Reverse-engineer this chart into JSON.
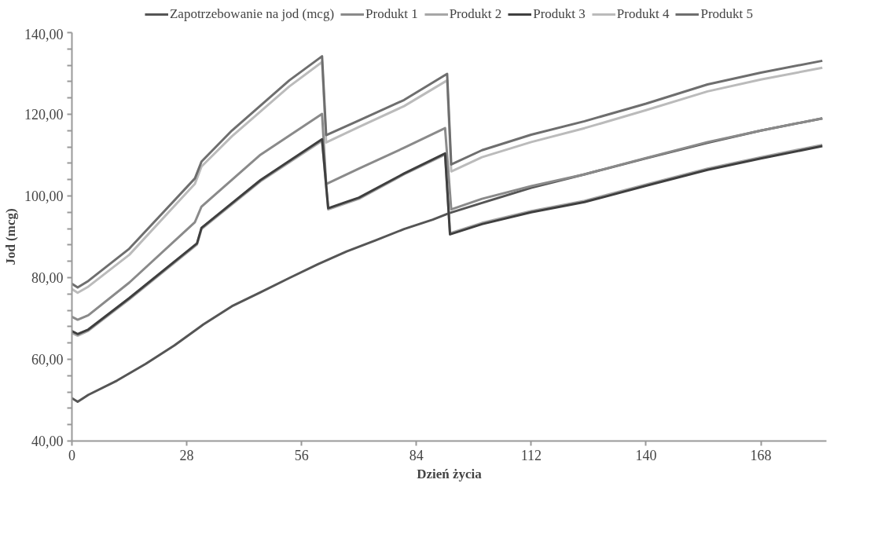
{
  "chart_data": {
    "type": "line",
    "xlabel": "Dzień życia",
    "ylabel": "Jod (mcg)",
    "xlim": [
      0,
      184
    ],
    "xticks": [
      0,
      28,
      56,
      84,
      112,
      140,
      168
    ],
    "ylim": [
      40,
      140
    ],
    "yticks": [
      {
        "value": 40,
        "label": "40,00"
      },
      {
        "value": 44,
        "label": null
      },
      {
        "value": 48,
        "label": null
      },
      {
        "value": 52,
        "label": null
      },
      {
        "value": 56,
        "label": null
      },
      {
        "value": 60,
        "label": "60,00"
      },
      {
        "value": 64,
        "label": null
      },
      {
        "value": 68,
        "label": null
      },
      {
        "value": 72,
        "label": null
      },
      {
        "value": 76,
        "label": null
      },
      {
        "value": 80,
        "label": "80,00"
      },
      {
        "value": 84,
        "label": null
      },
      {
        "value": 88,
        "label": null
      },
      {
        "value": 92,
        "label": null
      },
      {
        "value": 96,
        "label": null
      },
      {
        "value": 100,
        "label": "100,00"
      },
      {
        "value": 104,
        "label": null
      },
      {
        "value": 108,
        "label": null
      },
      {
        "value": 112,
        "label": null
      },
      {
        "value": 116,
        "label": null
      },
      {
        "value": 120,
        "label": "120,00"
      },
      {
        "value": 124,
        "label": null
      },
      {
        "value": 128,
        "label": null
      },
      {
        "value": 132,
        "label": null
      },
      {
        "value": 136,
        "label": null
      },
      {
        "value": 140,
        "label": "140,00"
      }
    ],
    "grid": false,
    "legend": "top",
    "marker": "none",
    "line_style": "solid",
    "series": [
      {
        "name": "Zapotrzebowanie na jod (mcg)",
        "color": "#555555",
        "x": [
          0,
          1.4,
          4,
          11,
          18,
          25,
          32,
          39,
          46,
          53,
          60,
          67,
          74,
          81,
          88,
          92,
          100,
          112,
          125,
          140,
          155,
          168,
          183
        ],
        "values": [
          50.5,
          49.6,
          51.3,
          54.8,
          58.9,
          63.4,
          68.5,
          73.0,
          76.4,
          79.9,
          83.3,
          86.4,
          89.1,
          91.9,
          94.2,
          95.8,
          98.3,
          102.0,
          105.3,
          109.2,
          113.0,
          116.0,
          119.0
        ]
      },
      {
        "name": "Produkt 1",
        "color": "#8a8a8a",
        "x": [
          0,
          1.4,
          4,
          14,
          30,
          31.6,
          46,
          61,
          62,
          70,
          81,
          91,
          92.5,
          100,
          112,
          125,
          140,
          155,
          168,
          183
        ],
        "values": [
          70.4,
          69.7,
          70.8,
          78.8,
          93.6,
          97.4,
          110.1,
          120.1,
          102.9,
          106.7,
          111.8,
          116.6,
          96.7,
          99.3,
          102.4,
          105.3,
          109.3,
          113.2,
          116.0,
          119.0
        ]
      },
      {
        "name": "Produkt 2",
        "color": "#a6a6a6",
        "x": [
          0,
          1.4,
          4,
          14,
          30.5,
          31.6,
          46,
          61,
          62.5,
          70,
          81,
          91,
          92.2,
          100,
          112,
          125,
          140,
          155,
          168,
          183
        ],
        "values": [
          66.5,
          65.8,
          67.0,
          74.7,
          88.1,
          91.9,
          103.6,
          113.5,
          96.7,
          99.3,
          105.3,
          110.1,
          90.9,
          93.4,
          96.3,
          98.8,
          102.8,
          106.7,
          109.5,
          112.5
        ]
      },
      {
        "name": "Produkt 3",
        "color": "#3f3f3f",
        "x": [
          0,
          1.4,
          4,
          14,
          30.5,
          31.6,
          46,
          61,
          62.5,
          70,
          81,
          91,
          92.2,
          100,
          112,
          125,
          140,
          155,
          168,
          183
        ],
        "values": [
          66.9,
          66.2,
          67.3,
          75.0,
          88.4,
          92.2,
          103.9,
          113.9,
          97.0,
          99.6,
          105.5,
          110.4,
          90.6,
          93.1,
          96.0,
          98.5,
          102.5,
          106.4,
          109.2,
          112.2
        ]
      },
      {
        "name": "Produkt 4",
        "color": "#bbbbbb",
        "x": [
          0,
          1.4,
          4,
          14,
          30,
          31.6,
          39,
          53,
          61,
          62,
          70,
          81,
          91.5,
          92.5,
          100,
          112,
          125,
          140,
          155,
          168,
          183
        ],
        "values": [
          77.2,
          76.3,
          77.8,
          85.6,
          103.0,
          107.2,
          114.6,
          126.8,
          132.8,
          113.1,
          116.9,
          122.0,
          128.3,
          106.0,
          109.5,
          113.2,
          116.6,
          121.0,
          125.6,
          128.5,
          131.4
        ]
      },
      {
        "name": "Produkt 5",
        "color": "#6e6e6e",
        "x": [
          0,
          1.4,
          4,
          14,
          30,
          31.6,
          39,
          53,
          61,
          62,
          70,
          81,
          91.5,
          92.5,
          100,
          112,
          125,
          140,
          155,
          168,
          183
        ],
        "values": [
          78.5,
          77.6,
          79.2,
          87.1,
          104.3,
          108.4,
          116.0,
          128.3,
          134.2,
          114.9,
          118.5,
          123.5,
          129.9,
          107.7,
          111.2,
          115.0,
          118.3,
          122.6,
          127.3,
          130.2,
          133.1
        ]
      }
    ]
  }
}
